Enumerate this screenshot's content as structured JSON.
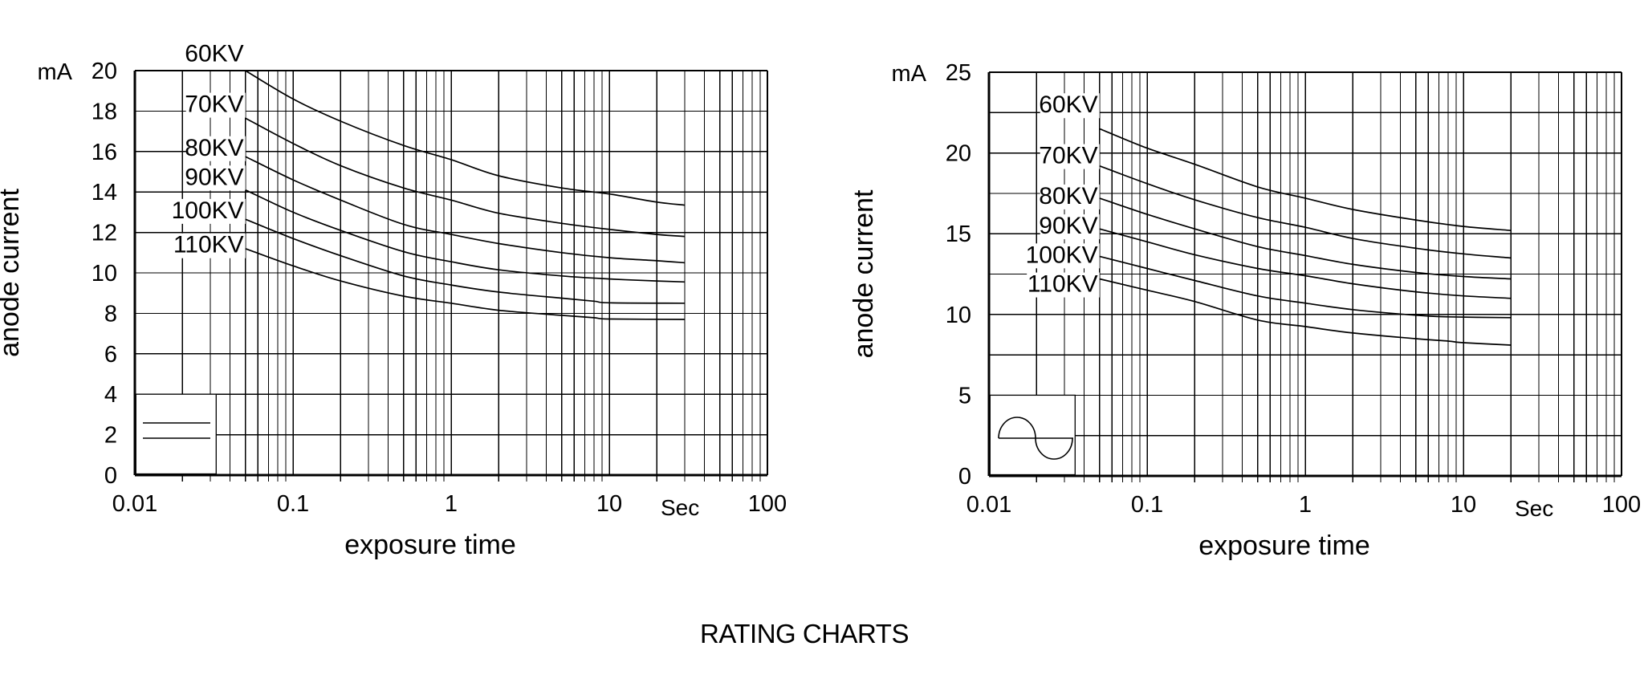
{
  "caption": "RATING CHARTS",
  "colors": {
    "ink": "#000000",
    "background": "#ffffff"
  },
  "chart_data": [
    {
      "id": "dc-rating-chart",
      "type": "line",
      "title": "",
      "xlabel": "exposure time",
      "ylabel": "anode current",
      "y_unit": "mA",
      "x_unit_label": "Sec",
      "x_scale": "log",
      "xlim": [
        0.01,
        100
      ],
      "x_tick_labels": [
        "0.01",
        "0.1",
        "1",
        "10",
        "100"
      ],
      "ylim": [
        0,
        20
      ],
      "y_grid_step": 2,
      "y_label_step": 2,
      "grid": true,
      "legend_position": "bottom-left",
      "legend_symbol": "dc-waveform",
      "series": [
        {
          "name": "60KV",
          "label_y": 20.85,
          "points": [
            [
              0.05,
              20
            ],
            [
              0.1,
              18.6
            ],
            [
              0.2,
              17.5
            ],
            [
              0.5,
              16.3
            ],
            [
              1,
              15.6
            ],
            [
              2,
              14.8
            ],
            [
              5,
              14.2
            ],
            [
              10,
              13.9
            ],
            [
              20,
              13.5
            ],
            [
              30,
              13.35
            ]
          ]
        },
        {
          "name": "70KV",
          "label_y": 18.35,
          "points": [
            [
              0.05,
              17.65
            ],
            [
              0.1,
              16.4
            ],
            [
              0.2,
              15.3
            ],
            [
              0.5,
              14.2
            ],
            [
              1,
              13.6
            ],
            [
              2,
              12.95
            ],
            [
              5,
              12.45
            ],
            [
              10,
              12.15
            ],
            [
              20,
              11.9
            ],
            [
              30,
              11.8
            ]
          ]
        },
        {
          "name": "80KV",
          "label_y": 16.2,
          "points": [
            [
              0.05,
              15.75
            ],
            [
              0.1,
              14.6
            ],
            [
              0.2,
              13.6
            ],
            [
              0.5,
              12.4
            ],
            [
              1,
              11.9
            ],
            [
              2,
              11.45
            ],
            [
              5,
              11.0
            ],
            [
              10,
              10.75
            ],
            [
              20,
              10.6
            ],
            [
              30,
              10.5
            ]
          ]
        },
        {
          "name": "90KV",
          "label_y": 14.75,
          "points": [
            [
              0.05,
              14.1
            ],
            [
              0.1,
              13.0
            ],
            [
              0.2,
              12.1
            ],
            [
              0.5,
              11.05
            ],
            [
              1,
              10.55
            ],
            [
              2,
              10.15
            ],
            [
              5,
              9.85
            ],
            [
              10,
              9.7
            ],
            [
              20,
              9.6
            ],
            [
              30,
              9.55
            ]
          ]
        },
        {
          "name": "100KV",
          "label_y": 13.1,
          "points": [
            [
              0.05,
              12.65
            ],
            [
              0.1,
              11.7
            ],
            [
              0.2,
              10.85
            ],
            [
              0.5,
              9.85
            ],
            [
              1,
              9.4
            ],
            [
              2,
              9.05
            ],
            [
              5,
              8.75
            ],
            [
              8,
              8.6
            ],
            [
              10,
              8.52
            ],
            [
              30,
              8.5
            ]
          ]
        },
        {
          "name": "110KV",
          "label_y": 11.4,
          "points": [
            [
              0.05,
              11.2
            ],
            [
              0.1,
              10.35
            ],
            [
              0.2,
              9.6
            ],
            [
              0.5,
              8.85
            ],
            [
              1,
              8.5
            ],
            [
              2,
              8.15
            ],
            [
              5,
              7.9
            ],
            [
              8,
              7.78
            ],
            [
              10,
              7.72
            ],
            [
              30,
              7.7
            ]
          ]
        }
      ]
    },
    {
      "id": "ac-rating-chart",
      "type": "line",
      "title": "",
      "xlabel": "exposure time",
      "ylabel": "anode current",
      "y_unit": "mA",
      "x_unit_label": "Sec",
      "x_scale": "log",
      "xlim": [
        0.01,
        100
      ],
      "x_tick_labels": [
        "0.01",
        "0.1",
        "1",
        "10",
        "100"
      ],
      "ylim": [
        0,
        25
      ],
      "y_grid_step": 2.5,
      "y_label_step": 5,
      "grid": true,
      "legend_position": "bottom-left",
      "legend_symbol": "ac-waveform",
      "series": [
        {
          "name": "60KV",
          "label_y": 23.0,
          "points": [
            [
              0.05,
              21.5
            ],
            [
              0.1,
              20.3
            ],
            [
              0.2,
              19.3
            ],
            [
              0.5,
              17.9
            ],
            [
              1,
              17.2
            ],
            [
              2,
              16.5
            ],
            [
              5,
              15.85
            ],
            [
              10,
              15.45
            ],
            [
              20,
              15.2
            ]
          ]
        },
        {
          "name": "70KV",
          "label_y": 19.85,
          "points": [
            [
              0.05,
              19.2
            ],
            [
              0.1,
              18.1
            ],
            [
              0.2,
              17.1
            ],
            [
              0.5,
              16.0
            ],
            [
              1,
              15.4
            ],
            [
              2,
              14.7
            ],
            [
              5,
              14.1
            ],
            [
              10,
              13.75
            ],
            [
              20,
              13.5
            ]
          ]
        },
        {
          "name": "80KV",
          "label_y": 17.35,
          "points": [
            [
              0.05,
              17.2
            ],
            [
              0.1,
              16.2
            ],
            [
              0.2,
              15.3
            ],
            [
              0.5,
              14.2
            ],
            [
              1,
              13.65
            ],
            [
              2,
              13.1
            ],
            [
              5,
              12.6
            ],
            [
              10,
              12.35
            ],
            [
              20,
              12.2
            ]
          ]
        },
        {
          "name": "90KV",
          "label_y": 15.5,
          "points": [
            [
              0.05,
              15.3
            ],
            [
              0.1,
              14.5
            ],
            [
              0.2,
              13.7
            ],
            [
              0.5,
              12.85
            ],
            [
              1,
              12.4
            ],
            [
              2,
              11.9
            ],
            [
              5,
              11.4
            ],
            [
              10,
              11.15
            ],
            [
              20,
              11.0
            ]
          ]
        },
        {
          "name": "100KV",
          "label_y": 13.7,
          "points": [
            [
              0.05,
              13.6
            ],
            [
              0.1,
              12.85
            ],
            [
              0.2,
              12.1
            ],
            [
              0.5,
              11.15
            ],
            [
              1,
              10.7
            ],
            [
              2,
              10.3
            ],
            [
              5,
              9.95
            ],
            [
              8,
              9.85
            ],
            [
              20,
              9.8
            ]
          ]
        },
        {
          "name": "110KV",
          "label_y": 11.9,
          "points": [
            [
              0.05,
              12.2
            ],
            [
              0.1,
              11.5
            ],
            [
              0.2,
              10.8
            ],
            [
              0.5,
              9.65
            ],
            [
              1,
              9.25
            ],
            [
              2,
              8.85
            ],
            [
              5,
              8.5
            ],
            [
              8,
              8.35
            ],
            [
              10,
              8.25
            ],
            [
              20,
              8.1
            ]
          ]
        }
      ]
    }
  ]
}
